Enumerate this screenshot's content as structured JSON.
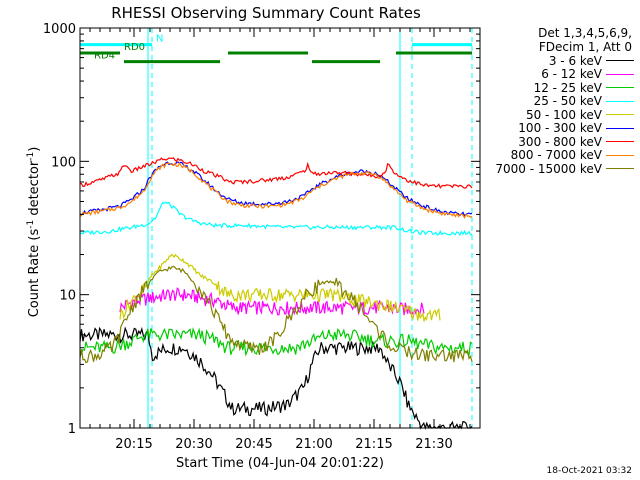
{
  "chart_data": {
    "type": "line",
    "title": "RHESSI Observing Summary Count Rates",
    "xlabel": "Start Time (04-Jun-04 20:01:22)",
    "ylabel_parts": [
      "Count Rate (s",
      "-1",
      " detector",
      "-1",
      ")"
    ],
    "yscale": "log",
    "ylim": [
      1,
      1000
    ],
    "xlim": [
      0,
      100
    ],
    "x_ticks": [
      {
        "x": 13.5,
        "label": "20:15"
      },
      {
        "x": 28.5,
        "label": "20:30"
      },
      {
        "x": 43.5,
        "label": "20:45"
      },
      {
        "x": 58.5,
        "label": "21:00"
      },
      {
        "x": 73.5,
        "label": "21:15"
      },
      {
        "x": 88.5,
        "label": "21:30"
      }
    ],
    "y_ticks": [
      {
        "y": 1,
        "label": "1"
      },
      {
        "y": 10,
        "label": "10"
      },
      {
        "y": 100,
        "label": "100"
      },
      {
        "y": 1000,
        "label": "1000"
      }
    ],
    "vlines_dashed": [
      18,
      83,
      98
    ],
    "vlines_solid": [
      17,
      80
    ],
    "flags": [
      {
        "label": "N",
        "color": "#00ffff",
        "y": 750,
        "segments": [
          [
            0,
            18
          ],
          [
            83,
            98
          ]
        ]
      },
      {
        "label": "RD0",
        "color": "#008000",
        "y": 650,
        "segments": [
          [
            0,
            10
          ],
          [
            37,
            57
          ],
          [
            79,
            98
          ]
        ]
      },
      {
        "label": "RD4",
        "color": "#008000",
        "y": 560,
        "segments": [
          [
            11,
            35
          ],
          [
            58,
            75
          ]
        ]
      }
    ],
    "legend_header": [
      "Det 1,3,4,5,6,9,",
      "FDecim 1, Att 0"
    ],
    "series": [
      {
        "name": "3 - 6 keV",
        "color": "#000000",
        "x": [
          0,
          17,
          18,
          22,
          26,
          30,
          33,
          35,
          38,
          42,
          46,
          52,
          56,
          58,
          60,
          66,
          70,
          75,
          77,
          80,
          82,
          84,
          86,
          90,
          95,
          98
        ],
        "y": [
          5,
          5,
          3.5,
          4,
          4,
          3.2,
          2.5,
          2,
          1.4,
          1.4,
          1.4,
          1.5,
          2,
          3,
          4,
          4,
          4,
          4,
          3,
          2.2,
          1.5,
          1.2,
          1,
          1,
          1,
          1
        ]
      },
      {
        "name": "6 - 12 keV",
        "color": "#ff00ff",
        "x": [
          10,
          14,
          18,
          22,
          26,
          30,
          34,
          38,
          44,
          50,
          56,
          60,
          66,
          72,
          76,
          80,
          84,
          86
        ],
        "y": [
          8,
          9,
          9.5,
          10,
          10,
          9.5,
          9,
          8,
          8,
          8,
          8,
          8,
          8,
          8,
          8,
          7.8,
          7.8,
          7.8
        ]
      },
      {
        "name": "12 - 25 keV",
        "color": "#00cc00",
        "x": [
          0,
          8,
          10,
          13,
          16,
          18,
          21,
          25,
          30,
          34,
          37,
          40,
          45,
          50,
          54,
          58,
          62,
          66,
          70,
          74,
          78,
          82,
          86,
          90,
          95,
          98
        ],
        "y": [
          4,
          4,
          4.2,
          4.5,
          5,
          5,
          5,
          5,
          5,
          4.5,
          4,
          4,
          4,
          4,
          4,
          4.5,
          5,
          5,
          4.8,
          4.5,
          4.5,
          4.5,
          4.2,
          4,
          4,
          4
        ]
      },
      {
        "name": "25 - 50 keV",
        "color": "#00ffff",
        "x": [
          0,
          8,
          10,
          13,
          15,
          17,
          19,
          20,
          21,
          23,
          25,
          28,
          31,
          34,
          37,
          42,
          50,
          56,
          58,
          63,
          70,
          75,
          79,
          82,
          86,
          90,
          95,
          98
        ],
        "y": [
          29,
          30,
          31,
          32,
          33,
          34,
          38,
          44,
          50,
          46,
          40,
          36,
          34,
          33,
          33,
          33,
          32,
          32,
          32,
          32,
          32,
          32,
          32,
          30,
          29,
          29,
          29,
          29
        ]
      },
      {
        "name": "50 - 100 keV",
        "color": "#cccc00",
        "x": [
          10,
          13,
          16,
          18,
          20,
          23,
          26,
          30,
          34,
          37,
          42,
          50,
          56,
          58,
          63,
          70,
          75,
          79,
          82,
          86,
          90
        ],
        "y": [
          7,
          9,
          11,
          14,
          16,
          20,
          18,
          14,
          12,
          10,
          10,
          10,
          10,
          10,
          10,
          9,
          8.5,
          8,
          7.5,
          7,
          7
        ]
      },
      {
        "name": "100 - 300 keV",
        "color": "#0000ff",
        "x": [
          0,
          5,
          10,
          13,
          16,
          18,
          20,
          22,
          25,
          28,
          31,
          34,
          37,
          40,
          44,
          48,
          52,
          56,
          58,
          62,
          66,
          70,
          74,
          76,
          79,
          82,
          86,
          90,
          95,
          98
        ],
        "y": [
          41,
          43,
          46,
          52,
          62,
          80,
          92,
          98,
          96,
          86,
          72,
          60,
          52,
          49,
          48,
          48,
          50,
          55,
          62,
          72,
          80,
          84,
          82,
          74,
          62,
          52,
          46,
          42,
          40,
          40
        ]
      },
      {
        "name": "300 - 800 keV",
        "color": "#ff0000",
        "x": [
          0,
          5,
          10,
          11,
          13,
          16,
          18,
          20,
          22,
          25,
          28,
          31,
          34,
          36,
          37,
          40,
          46,
          52,
          56,
          57,
          58,
          62,
          66,
          70,
          74,
          76,
          77,
          79,
          82,
          86,
          90,
          95,
          98
        ],
        "y": [
          66,
          72,
          82,
          95,
          84,
          92,
          96,
          102,
          105,
          102,
          95,
          85,
          78,
          74,
          70,
          70,
          72,
          76,
          84,
          94,
          80,
          82,
          82,
          80,
          78,
          80,
          95,
          80,
          72,
          66,
          65,
          65,
          65
        ]
      },
      {
        "name": "800 - 7000 keV",
        "color": "#ff8000",
        "x": [
          0,
          5,
          10,
          13,
          16,
          18,
          20,
          22,
          25,
          28,
          31,
          34,
          37,
          40,
          44,
          48,
          52,
          56,
          58,
          62,
          66,
          70,
          74,
          76,
          79,
          82,
          86,
          90,
          95,
          98
        ],
        "y": [
          40,
          42,
          45,
          50,
          60,
          78,
          90,
          96,
          94,
          84,
          70,
          58,
          50,
          47,
          46,
          46,
          48,
          53,
          60,
          70,
          78,
          82,
          80,
          72,
          60,
          50,
          44,
          41,
          39,
          39
        ]
      },
      {
        "name": "7000 - 15000 keV",
        "color": "#808000",
        "x": [
          0,
          4,
          8,
          10,
          12,
          14,
          17,
          20,
          23,
          26,
          29,
          32,
          34,
          36,
          38,
          42,
          46,
          50,
          52,
          55,
          58,
          61,
          64,
          67,
          70,
          73,
          76,
          78,
          81,
          84,
          87,
          90,
          95,
          98
        ],
        "y": [
          3.5,
          3.5,
          4,
          5,
          7,
          9,
          12,
          15,
          16,
          15,
          12,
          9,
          7,
          5.5,
          4.5,
          4,
          4,
          5,
          6.5,
          8.5,
          11,
          12.5,
          12,
          10,
          8,
          6,
          4.8,
          4,
          3.8,
          3.6,
          3.5,
          3.5,
          3.5,
          3.5
        ]
      }
    ]
  },
  "timestamp": "18-Oct-2021 03:32"
}
